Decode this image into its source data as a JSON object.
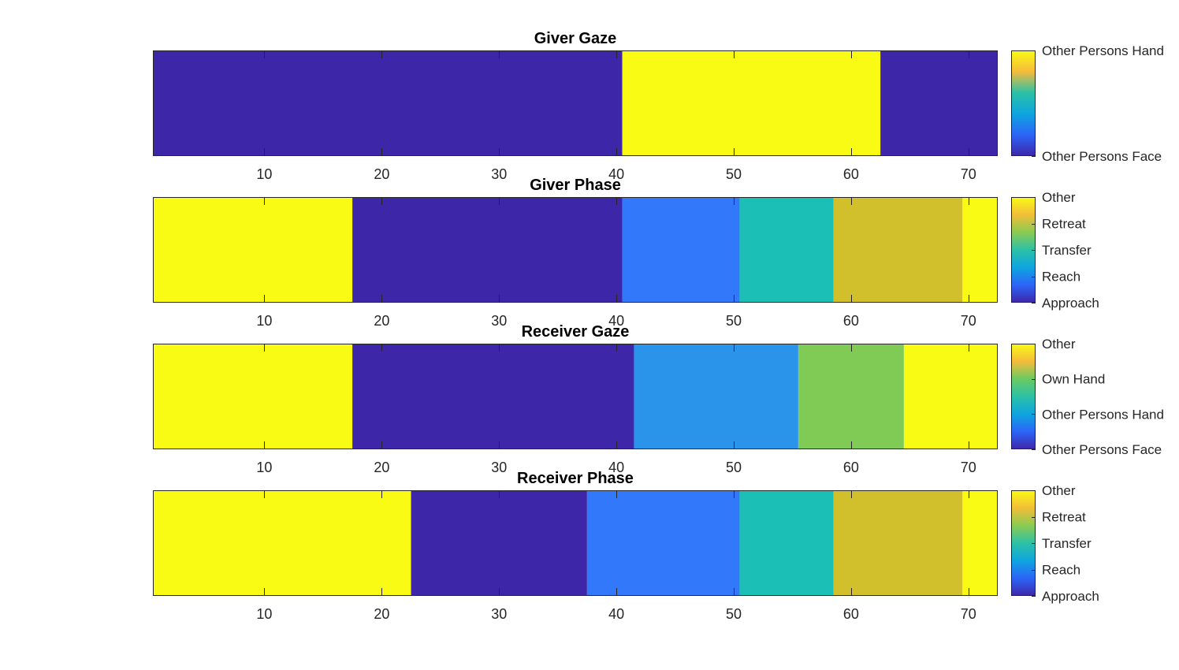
{
  "chart_data": [
    {
      "type": "heatmap",
      "title": "Giver Gaze",
      "xlim": [
        0.5,
        72.5
      ],
      "xticks": [
        10,
        20,
        30,
        40,
        50,
        60,
        70
      ],
      "segments": [
        {
          "start": 0.5,
          "end": 40.5,
          "category": "Other Persons Face",
          "color": "#3E26A8"
        },
        {
          "start": 40.5,
          "end": 62.5,
          "category": "Other Persons Hand",
          "color": "#F9FB15"
        },
        {
          "start": 62.5,
          "end": 72.5,
          "category": "Other Persons Face",
          "color": "#3E26A8"
        }
      ],
      "colorbar": {
        "labels_top_to_bottom": [
          "Other Persons Hand",
          "Other Persons Face"
        ],
        "stops": [
          "#F9FB15",
          "#F5BB3B",
          "#2CC1A6",
          "#0EA5E0",
          "#2C64F7",
          "#3E26A8"
        ]
      }
    },
    {
      "type": "heatmap",
      "title": "Giver Phase",
      "xlim": [
        0.5,
        72.5
      ],
      "xticks": [
        10,
        20,
        30,
        40,
        50,
        60,
        70
      ],
      "segments": [
        {
          "start": 0.5,
          "end": 17.5,
          "category": "Other",
          "color": "#F9FB15"
        },
        {
          "start": 17.5,
          "end": 40.5,
          "category": "Approach",
          "color": "#3E26A8"
        },
        {
          "start": 40.5,
          "end": 50.5,
          "category": "Reach",
          "color": "#3278FB"
        },
        {
          "start": 50.5,
          "end": 58.5,
          "category": "Transfer",
          "color": "#1BBFB6"
        },
        {
          "start": 58.5,
          "end": 69.5,
          "category": "Retreat",
          "color": "#D1C02B"
        },
        {
          "start": 69.5,
          "end": 72.5,
          "category": "Other",
          "color": "#F9FB15"
        }
      ],
      "colorbar": {
        "labels_top_to_bottom": [
          "Other",
          "Retreat",
          "Transfer",
          "Reach",
          "Approach"
        ],
        "stops": [
          "#F9FB15",
          "#F2BE38",
          "#8BCB52",
          "#2CC1A6",
          "#0EA5E0",
          "#2C64F7",
          "#3E26A8"
        ]
      }
    },
    {
      "type": "heatmap",
      "title": "Receiver Gaze",
      "xlim": [
        0.5,
        72.5
      ],
      "xticks": [
        10,
        20,
        30,
        40,
        50,
        60,
        70
      ],
      "segments": [
        {
          "start": 0.5,
          "end": 17.5,
          "category": "Other",
          "color": "#F9FB15"
        },
        {
          "start": 17.5,
          "end": 41.5,
          "category": "Other Persons Face",
          "color": "#3E26A8"
        },
        {
          "start": 41.5,
          "end": 55.5,
          "category": "Other Persons Hand",
          "color": "#2A94EA"
        },
        {
          "start": 55.5,
          "end": 64.5,
          "category": "Own Hand",
          "color": "#80CB55"
        },
        {
          "start": 64.5,
          "end": 72.5,
          "category": "Other",
          "color": "#F9FB15"
        }
      ],
      "colorbar": {
        "labels_top_to_bottom": [
          "Other",
          "Own Hand",
          "Other Persons Hand",
          "Other Persons Face"
        ],
        "stops": [
          "#F9FB15",
          "#F5BB3B",
          "#6ACB62",
          "#2CC1A6",
          "#0EA5E0",
          "#2C64F7",
          "#3E26A8"
        ]
      }
    },
    {
      "type": "heatmap",
      "title": "Receiver Phase",
      "xlim": [
        0.5,
        72.5
      ],
      "xticks": [
        10,
        20,
        30,
        40,
        50,
        60,
        70
      ],
      "segments": [
        {
          "start": 0.5,
          "end": 22.5,
          "category": "Other",
          "color": "#F9FB15"
        },
        {
          "start": 22.5,
          "end": 37.5,
          "category": "Approach",
          "color": "#3E26A8"
        },
        {
          "start": 37.5,
          "end": 50.5,
          "category": "Reach",
          "color": "#3278FB"
        },
        {
          "start": 50.5,
          "end": 58.5,
          "category": "Transfer",
          "color": "#1BBFB6"
        },
        {
          "start": 58.5,
          "end": 69.5,
          "category": "Retreat",
          "color": "#D1C02B"
        },
        {
          "start": 69.5,
          "end": 72.5,
          "category": "Other",
          "color": "#F9FB15"
        }
      ],
      "colorbar": {
        "labels_top_to_bottom": [
          "Other",
          "Retreat",
          "Transfer",
          "Reach",
          "Approach"
        ],
        "stops": [
          "#F9FB15",
          "#F2BE38",
          "#8BCB52",
          "#2CC1A6",
          "#0EA5E0",
          "#2C64F7",
          "#3E26A8"
        ]
      }
    }
  ]
}
